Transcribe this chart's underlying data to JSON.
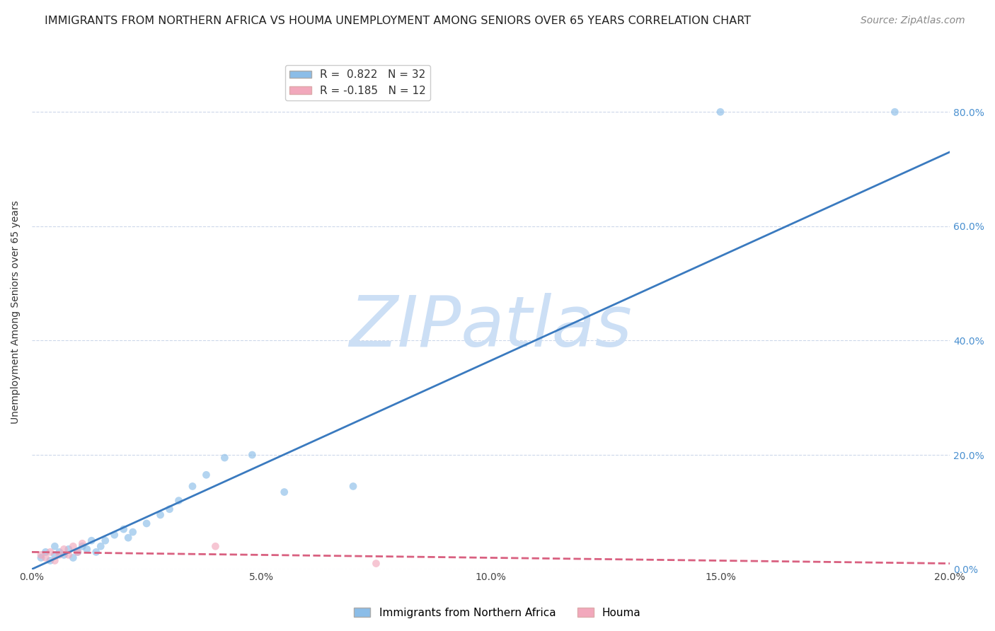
{
  "title": "IMMIGRANTS FROM NORTHERN AFRICA VS HOUMA UNEMPLOYMENT AMONG SENIORS OVER 65 YEARS CORRELATION CHART",
  "source": "Source: ZipAtlas.com",
  "ylabel_left": "Unemployment Among Seniors over 65 years",
  "watermark": "ZIPatlas",
  "xlim": [
    0.0,
    0.2
  ],
  "ylim": [
    0.0,
    0.9
  ],
  "xtick_labels": [
    "0.0%",
    "5.0%",
    "10.0%",
    "15.0%",
    "20.0%"
  ],
  "xtick_values": [
    0.0,
    0.05,
    0.1,
    0.15,
    0.2
  ],
  "ytick_labels_right": [
    "0.0%",
    "20.0%",
    "40.0%",
    "60.0%",
    "80.0%"
  ],
  "ytick_values_right": [
    0.0,
    0.2,
    0.4,
    0.6,
    0.8
  ],
  "legend_entry_blue": "R =  0.822   N = 32",
  "legend_entry_pink": "R = -0.185   N = 12",
  "legend_labels_bottom": [
    "Immigrants from Northern Africa",
    "Houma"
  ],
  "blue_scatter_x": [
    0.002,
    0.003,
    0.004,
    0.005,
    0.005,
    0.006,
    0.007,
    0.008,
    0.009,
    0.01,
    0.011,
    0.012,
    0.013,
    0.014,
    0.015,
    0.016,
    0.018,
    0.02,
    0.021,
    0.022,
    0.025,
    0.028,
    0.03,
    0.032,
    0.035,
    0.038,
    0.042,
    0.048,
    0.055,
    0.07,
    0.15,
    0.188
  ],
  "blue_scatter_y": [
    0.02,
    0.03,
    0.015,
    0.025,
    0.04,
    0.03,
    0.025,
    0.035,
    0.02,
    0.03,
    0.04,
    0.035,
    0.05,
    0.03,
    0.04,
    0.05,
    0.06,
    0.07,
    0.055,
    0.065,
    0.08,
    0.095,
    0.105,
    0.12,
    0.145,
    0.165,
    0.195,
    0.2,
    0.135,
    0.145,
    0.8,
    0.8
  ],
  "blue_trend_x": [
    0.0,
    0.2
  ],
  "blue_trend_y": [
    0.0,
    0.73
  ],
  "pink_scatter_x": [
    0.002,
    0.003,
    0.004,
    0.005,
    0.006,
    0.007,
    0.008,
    0.009,
    0.01,
    0.011,
    0.04,
    0.075
  ],
  "pink_scatter_y": [
    0.025,
    0.02,
    0.03,
    0.015,
    0.025,
    0.035,
    0.025,
    0.04,
    0.03,
    0.045,
    0.04,
    0.01
  ],
  "pink_trend_x": [
    0.0,
    0.2
  ],
  "pink_trend_y": [
    0.03,
    0.01
  ],
  "blue_color": "#8bbde8",
  "pink_color": "#f2a8bc",
  "blue_trend_color": "#3a7abf",
  "pink_trend_color": "#d96080",
  "grid_color": "#c8d4e8",
  "background_color": "#ffffff",
  "watermark_color": "#ccdff5",
  "title_fontsize": 11.5,
  "source_fontsize": 10,
  "axis_label_fontsize": 10,
  "tick_fontsize": 10,
  "legend_fontsize": 11,
  "watermark_fontsize": 72,
  "scatter_size": 60,
  "scatter_alpha": 0.65,
  "trend_linewidth": 2.0
}
